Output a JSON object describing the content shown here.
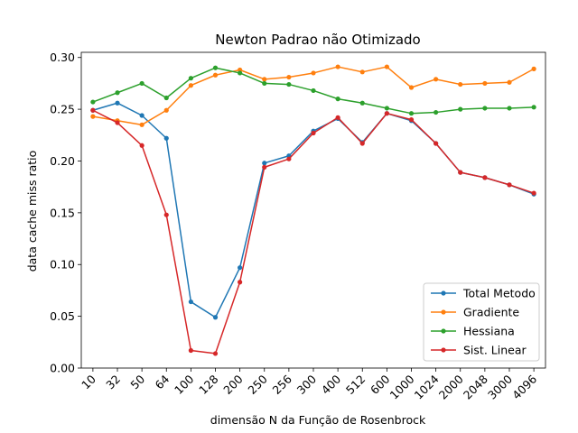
{
  "chart_data": {
    "type": "line",
    "title": "Newton Padrao não Otimizado",
    "xlabel": "dimensão N da Função de Rosenbrock",
    "ylabel": "data cache miss ratio",
    "categories": [
      "10",
      "32",
      "50",
      "64",
      "100",
      "128",
      "200",
      "250",
      "256",
      "300",
      "400",
      "512",
      "600",
      "1000",
      "1024",
      "2000",
      "2048",
      "3000",
      "4096"
    ],
    "ylim": [
      0.0,
      0.305
    ],
    "yticks": [
      0.0,
      0.05,
      0.1,
      0.15,
      0.2,
      0.25,
      0.3
    ],
    "ytick_labels": [
      "0.00",
      "0.05",
      "0.10",
      "0.15",
      "0.20",
      "0.25",
      "0.30"
    ],
    "grid": false,
    "legend_position": "lower-right",
    "series": [
      {
        "name": "Total Metodo",
        "color": "#1f77b4",
        "values": [
          0.249,
          0.256,
          0.244,
          0.222,
          0.064,
          0.049,
          0.097,
          0.198,
          0.205,
          0.229,
          0.241,
          0.218,
          0.246,
          0.239,
          0.217,
          0.189,
          0.184,
          0.177,
          0.168
        ]
      },
      {
        "name": "Gradiente",
        "color": "#ff7f0e",
        "values": [
          0.243,
          0.239,
          0.235,
          0.249,
          0.273,
          0.283,
          0.288,
          0.279,
          0.281,
          0.285,
          0.291,
          0.286,
          0.291,
          0.271,
          0.279,
          0.274,
          0.275,
          0.276,
          0.289
        ]
      },
      {
        "name": "Hessiana",
        "color": "#2ca02c",
        "values": [
          0.257,
          0.266,
          0.275,
          0.261,
          0.28,
          0.29,
          0.285,
          0.275,
          0.274,
          0.268,
          0.26,
          0.256,
          0.251,
          0.246,
          0.247,
          0.25,
          0.251,
          0.251,
          0.252
        ]
      },
      {
        "name": "Sist. Linear",
        "color": "#d62728",
        "values": [
          0.249,
          0.237,
          0.215,
          0.148,
          0.017,
          0.014,
          0.083,
          0.194,
          0.202,
          0.227,
          0.242,
          0.217,
          0.246,
          0.24,
          0.217,
          0.189,
          0.184,
          0.177,
          0.169
        ]
      }
    ]
  }
}
